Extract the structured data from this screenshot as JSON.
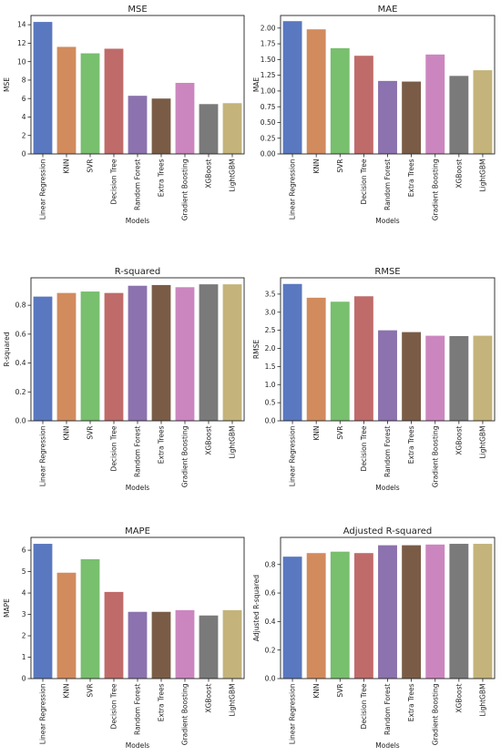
{
  "colors": {
    "bars": [
      "#5a78bf",
      "#d28b5d",
      "#78bf6e",
      "#bf6b69",
      "#8c72ae",
      "#7a5c46",
      "#cc86bf",
      "#7a7a7a",
      "#c4b37a"
    ],
    "axes": "#222222",
    "background": "#ffffff"
  },
  "chart_data": [
    {
      "type": "bar",
      "title": "MSE",
      "xlabel": "Models",
      "ylabel": "MSE",
      "categories": [
        "Linear Regression",
        "KNN",
        "SVR",
        "Decision Tree",
        "Random Forest",
        "Extra Trees",
        "Gradient Boosting",
        "XGBoost",
        "LightGBM"
      ],
      "values": [
        14.3,
        11.6,
        10.9,
        11.4,
        6.3,
        6.0,
        7.7,
        5.4,
        5.5
      ],
      "ylim": [
        0,
        15
      ],
      "yticks": [
        0,
        2,
        4,
        6,
        8,
        10,
        12,
        14
      ],
      "ytick_labels": [
        "0",
        "2",
        "4",
        "6",
        "8",
        "10",
        "12",
        "14"
      ],
      "grid": false
    },
    {
      "type": "bar",
      "title": "MAE",
      "xlabel": "Models",
      "ylabel": "MAE",
      "categories": [
        "Linear Regression",
        "KNN",
        "SVR",
        "Decision Tree",
        "Random Forest",
        "Extra Trees",
        "Gradient Boosting",
        "XGBoost",
        "LightGBM"
      ],
      "values": [
        2.11,
        1.98,
        1.68,
        1.56,
        1.16,
        1.15,
        1.58,
        1.24,
        1.33
      ],
      "ylim": [
        0,
        2.2
      ],
      "yticks": [
        0,
        0.25,
        0.5,
        0.75,
        1.0,
        1.25,
        1.5,
        1.75,
        2.0
      ],
      "ytick_labels": [
        "0.00",
        "0.25",
        "0.50",
        "0.75",
        "1.00",
        "1.25",
        "1.50",
        "1.75",
        "2.00"
      ],
      "grid": false
    },
    {
      "type": "bar",
      "title": "R-squared",
      "xlabel": "Models",
      "ylabel": "R-squared",
      "categories": [
        "Linear Regression",
        "KNN",
        "SVR",
        "Decision Tree",
        "Random Forest",
        "Extra Trees",
        "Gradient Boosting",
        "XGBoost",
        "LightGBM"
      ],
      "values": [
        0.86,
        0.885,
        0.895,
        0.885,
        0.935,
        0.94,
        0.925,
        0.945,
        0.945
      ],
      "ylim": [
        0,
        0.99
      ],
      "yticks": [
        0,
        0.2,
        0.4,
        0.6,
        0.8
      ],
      "ytick_labels": [
        "0.0",
        "0.2",
        "0.4",
        "0.6",
        "0.8"
      ],
      "grid": false
    },
    {
      "type": "bar",
      "title": "RMSE",
      "xlabel": "Models",
      "ylabel": "RMSE",
      "categories": [
        "Linear Regression",
        "KNN",
        "SVR",
        "Decision Tree",
        "Random Forest",
        "Extra Trees",
        "Gradient Boosting",
        "XGBoost",
        "LightGBM"
      ],
      "values": [
        3.78,
        3.4,
        3.29,
        3.44,
        2.5,
        2.45,
        2.35,
        2.34,
        2.35
      ],
      "ylim": [
        0,
        3.95
      ],
      "yticks": [
        0,
        0.5,
        1.0,
        1.5,
        2.0,
        2.5,
        3.0,
        3.5
      ],
      "ytick_labels": [
        "0.0",
        "0.5",
        "1.0",
        "1.5",
        "2.0",
        "2.5",
        "3.0",
        "3.5"
      ],
      "grid": false
    },
    {
      "type": "bar",
      "title": "MAPE",
      "xlabel": "Models",
      "ylabel": "MAPE",
      "categories": [
        "Linear Regression",
        "KNN",
        "SVR",
        "Decision Tree",
        "Random Forest",
        "Extra Trees",
        "Gradient Boosting",
        "XGBoost",
        "LightGBM"
      ],
      "values": [
        6.3,
        4.95,
        5.58,
        4.05,
        3.12,
        3.12,
        3.2,
        2.95,
        3.2
      ],
      "ylim": [
        0,
        6.6
      ],
      "yticks": [
        0,
        1,
        2,
        3,
        4,
        5,
        6
      ],
      "ytick_labels": [
        "0",
        "1",
        "2",
        "3",
        "4",
        "5",
        "6"
      ],
      "grid": false
    },
    {
      "type": "bar",
      "title": "Adjusted R-squared",
      "xlabel": "Models",
      "ylabel": "Adjusted R-squared",
      "categories": [
        "Linear Regression",
        "KNN",
        "SVR",
        "Decision Tree",
        "Random Forest",
        "Extra Trees",
        "Gradient Boosting",
        "XGBoost",
        "LightGBM"
      ],
      "values": [
        0.855,
        0.88,
        0.89,
        0.88,
        0.935,
        0.935,
        0.94,
        0.945,
        0.945
      ],
      "ylim": [
        0,
        0.99
      ],
      "yticks": [
        0,
        0.2,
        0.4,
        0.6,
        0.8
      ],
      "ytick_labels": [
        "0.0",
        "0.2",
        "0.4",
        "0.6",
        "0.8"
      ],
      "grid": false
    }
  ]
}
